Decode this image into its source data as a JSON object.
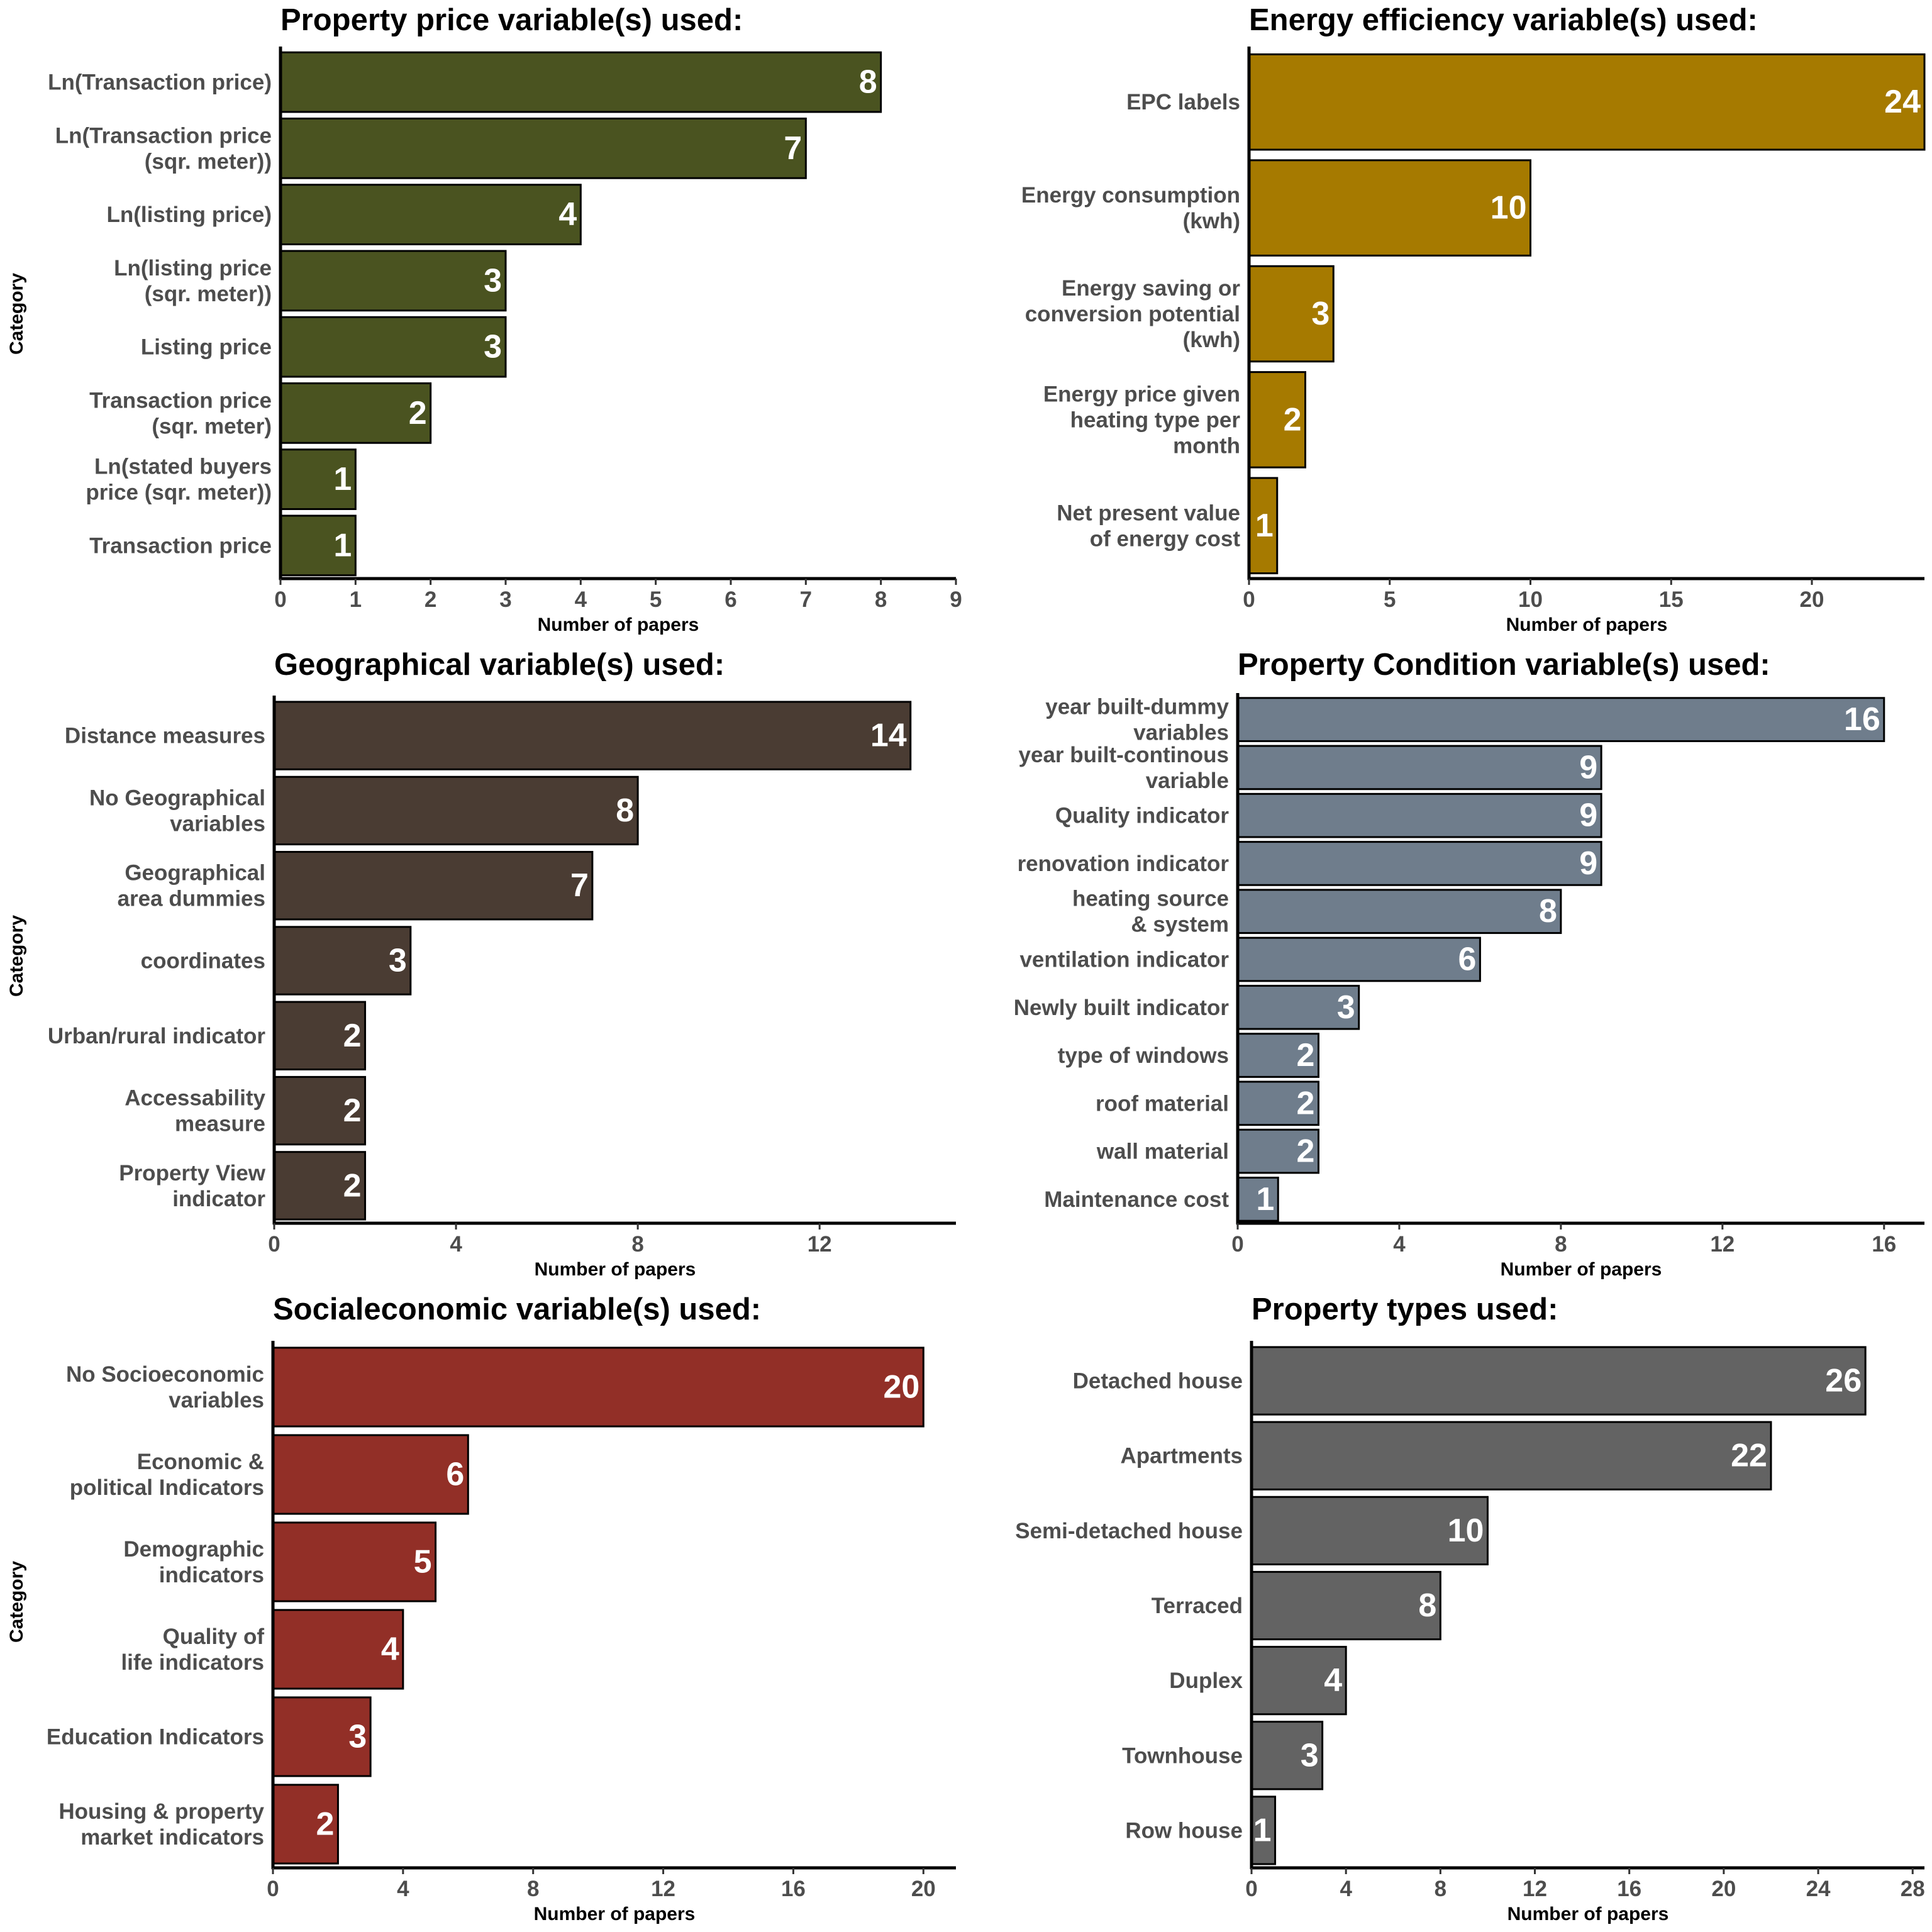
{
  "chart_data": [
    {
      "type": "bar",
      "orientation": "horizontal",
      "title": "Property price variable(s) used:",
      "xlabel": "Number of papers",
      "ylabel": "Category",
      "xlim": [
        0,
        9
      ],
      "xticks": [
        0,
        1,
        2,
        3,
        4,
        5,
        6,
        7,
        8,
        9
      ],
      "color": "#4a5320",
      "categories": [
        [
          "Ln(Transaction price)"
        ],
        [
          "Ln(Transaction price",
          "(sqr. meter))"
        ],
        [
          "Ln(listing price)"
        ],
        [
          "Ln(listing price",
          "(sqr. meter))"
        ],
        [
          "Listing price"
        ],
        [
          "Transaction price",
          "(sqr. meter)"
        ],
        [
          "Ln(stated buyers",
          "price (sqr. meter))"
        ],
        [
          "Transaction price"
        ]
      ],
      "values": [
        8,
        7,
        4,
        3,
        3,
        2,
        1,
        1
      ]
    },
    {
      "type": "bar",
      "orientation": "horizontal",
      "title": "Energy efficiency variable(s) used:",
      "xlabel": "Number of papers",
      "ylabel": "",
      "xlim": [
        0,
        24
      ],
      "xticks": [
        0,
        5,
        10,
        15,
        20
      ],
      "color": "#a67a00",
      "categories": [
        [
          "EPC labels"
        ],
        [
          "Energy consumption",
          "(kwh)"
        ],
        [
          "Energy saving or",
          "conversion potential",
          "(kwh)"
        ],
        [
          "Energy price given",
          "heating type per",
          "month"
        ],
        [
          "Net present value",
          "of energy cost"
        ]
      ],
      "values": [
        24,
        10,
        3,
        2,
        1
      ]
    },
    {
      "type": "bar",
      "orientation": "horizontal",
      "title": "Geographical variable(s) used:",
      "xlabel": "Number of papers",
      "ylabel": "Category",
      "xlim": [
        0,
        15
      ],
      "xticks": [
        0,
        4,
        8,
        12
      ],
      "color": "#4a3c33",
      "categories": [
        [
          "Distance measures"
        ],
        [
          "No Geographical",
          "variables"
        ],
        [
          "Geographical",
          "area dummies"
        ],
        [
          "coordinates"
        ],
        [
          "Urban/rural indicator"
        ],
        [
          "Accessability",
          "measure"
        ],
        [
          "Property View",
          "indicator"
        ]
      ],
      "values": [
        14,
        8,
        7,
        3,
        2,
        2,
        2
      ]
    },
    {
      "type": "bar",
      "orientation": "horizontal",
      "title": "Property Condition variable(s) used:",
      "xlabel": "Number of papers",
      "ylabel": "",
      "xlim": [
        0,
        17
      ],
      "xticks": [
        0,
        4,
        8,
        12,
        16
      ],
      "color": "#6f7d8c",
      "categories": [
        [
          "year built-dummy",
          "variables"
        ],
        [
          "year built-continous",
          "variable"
        ],
        [
          "Quality indicator"
        ],
        [
          "renovation indicator"
        ],
        [
          "heating source",
          "& system"
        ],
        [
          "ventilation indicator"
        ],
        [
          "Newly built indicator"
        ],
        [
          "type of windows"
        ],
        [
          "roof material"
        ],
        [
          "wall material"
        ],
        [
          "Maintenance cost"
        ]
      ],
      "values": [
        16,
        9,
        9,
        9,
        8,
        6,
        3,
        2,
        2,
        2,
        1
      ]
    },
    {
      "type": "bar",
      "orientation": "horizontal",
      "title": "Socialeconomic variable(s) used:",
      "xlabel": "Number of papers",
      "ylabel": "Category",
      "xlim": [
        0,
        21
      ],
      "xticks": [
        0,
        4,
        8,
        12,
        16,
        20
      ],
      "color": "#922f27",
      "categories": [
        [
          "No Socioeconomic",
          "variables"
        ],
        [
          "Economic &",
          "political Indicators"
        ],
        [
          "Demographic",
          "indicators"
        ],
        [
          "Quality of",
          "life indicators"
        ],
        [
          "Education Indicators"
        ],
        [
          "Housing & property",
          "market indicators"
        ]
      ],
      "values": [
        20,
        6,
        5,
        4,
        3,
        2
      ]
    },
    {
      "type": "bar",
      "orientation": "horizontal",
      "title": "Property types used:",
      "xlabel": "Number of papers",
      "ylabel": "",
      "xlim": [
        0,
        28.5
      ],
      "xticks": [
        0,
        4,
        8,
        12,
        16,
        20,
        24,
        28
      ],
      "color": "#636363",
      "categories": [
        [
          "Detached house"
        ],
        [
          "Apartments"
        ],
        [
          "Semi-detached house"
        ],
        [
          "Terraced"
        ],
        [
          "Duplex"
        ],
        [
          "Townhouse"
        ],
        [
          "Row house"
        ]
      ],
      "values": [
        26,
        22,
        10,
        8,
        4,
        3,
        1
      ]
    }
  ]
}
